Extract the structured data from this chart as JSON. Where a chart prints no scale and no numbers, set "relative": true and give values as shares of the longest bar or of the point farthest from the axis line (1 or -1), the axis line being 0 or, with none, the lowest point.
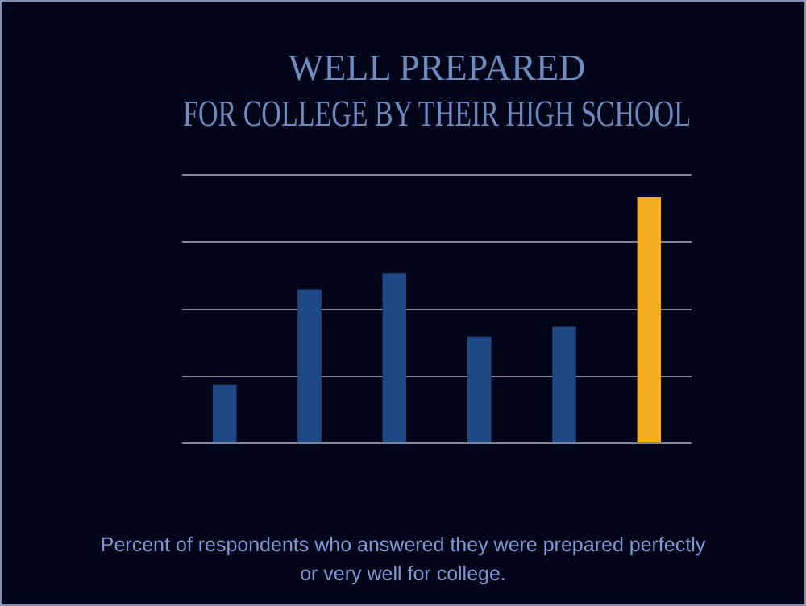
{
  "chart_data": {
    "type": "bar",
    "title": "WELL PREPARED\nFOR COLLEGE BY THEIR HIGH SCHOOL",
    "relative": true,
    "categories": [
      null,
      null,
      null,
      null,
      null,
      null
    ],
    "values": [
      0.237,
      0.625,
      0.691,
      0.434,
      0.474,
      1
    ],
    "colors": [
      "#1d4a86",
      "#1d4a86",
      "#1d4a86",
      "#1d4a86",
      "#1d4a86",
      "#f5ac23"
    ],
    "grid": "y",
    "annotations": [
      "Percent of respondents who answered they were prepared perfectly or very well for college."
    ]
  }
}
